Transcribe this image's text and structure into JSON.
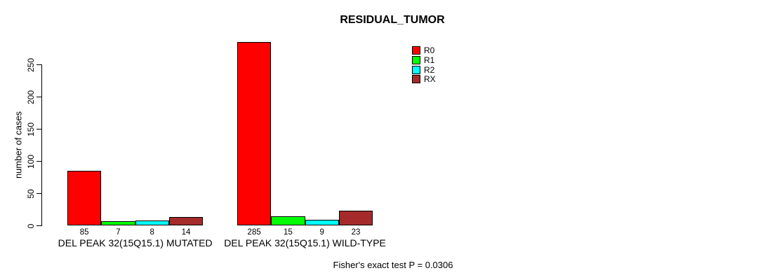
{
  "title": "RESIDUAL_TUMOR",
  "footer": "Fisher's exact test P = 0.0306",
  "chart_data": {
    "type": "bar",
    "title": "RESIDUAL_TUMOR",
    "xlabel": "",
    "ylabel": "number of cases",
    "ylim": [
      0,
      250
    ],
    "yticks": [
      0,
      50,
      100,
      150,
      200,
      250
    ],
    "grid": false,
    "legend_position": "top-right",
    "bar_value_labels": true,
    "categories": [
      "DEL PEAK 32(15Q15.1) MUTATED",
      "DEL PEAK 32(15Q15.1) WILD-TYPE"
    ],
    "series": [
      {
        "name": "R0",
        "color": "#FF0000",
        "values": [
          85,
          285
        ]
      },
      {
        "name": "R1",
        "color": "#00FF00",
        "values": [
          7,
          15
        ]
      },
      {
        "name": "R2",
        "color": "#00FFFF",
        "values": [
          8,
          9
        ]
      },
      {
        "name": "RX",
        "color": "#A52A2A",
        "values": [
          14,
          23
        ]
      }
    ],
    "annotation": "Fisher's exact test P = 0.0306"
  }
}
